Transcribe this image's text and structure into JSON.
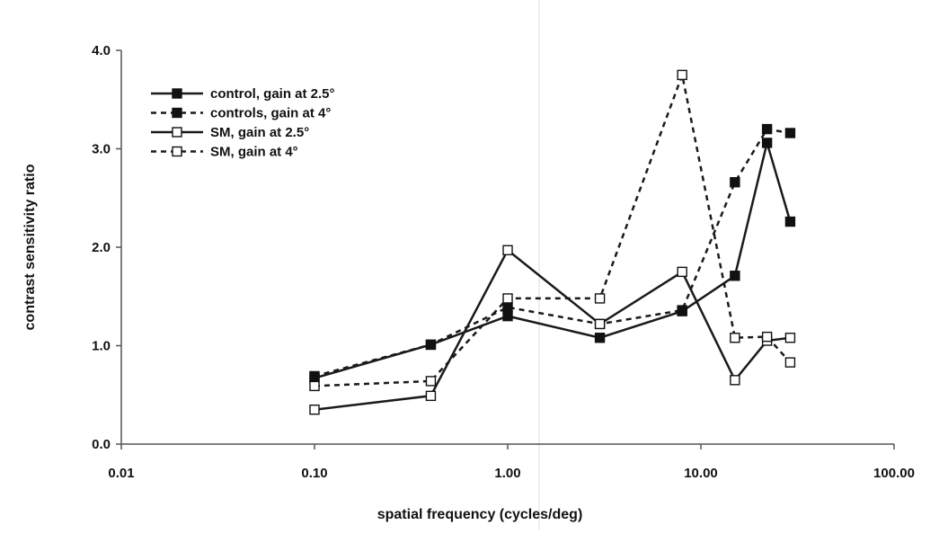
{
  "chart_data": {
    "type": "line",
    "title": "",
    "xlabel": "spatial frequency (cycles/deg)",
    "ylabel": "contrast sensitivity ratio",
    "x_scale": "log",
    "xlim": [
      0.01,
      100
    ],
    "ylim": [
      0,
      4
    ],
    "x_tick_labels": [
      "0.01",
      "0.10",
      "1.00",
      "10.00",
      "100.00"
    ],
    "y_tick_labels": [
      "0.0",
      "1.0",
      "2.0",
      "3.0",
      "4.0"
    ],
    "grid": false,
    "legend_position": "top-left",
    "series": [
      {
        "name": "control, gain at 2.5°",
        "line_style": "solid",
        "marker": "filled-square",
        "x": [
          0.1,
          0.4,
          1.0,
          3.0,
          8.0,
          15.0,
          22.0,
          29.0
        ],
        "y": [
          0.67,
          1.01,
          1.3,
          1.08,
          1.35,
          1.71,
          3.06,
          2.26
        ]
      },
      {
        "name": "controls, gain at 4°",
        "line_style": "dashed",
        "marker": "filled-square",
        "x": [
          0.1,
          0.4,
          1.0,
          3.0,
          8.0,
          15.0,
          22.0,
          29.0
        ],
        "y": [
          0.69,
          1.01,
          1.39,
          1.22,
          1.36,
          2.66,
          3.2,
          3.16
        ]
      },
      {
        "name": "SM, gain at 2.5°",
        "line_style": "solid",
        "marker": "open-square",
        "x": [
          0.1,
          0.4,
          1.0,
          3.0,
          8.0,
          15.0,
          22.0,
          29.0
        ],
        "y": [
          0.35,
          0.49,
          1.97,
          1.22,
          1.75,
          0.65,
          1.05,
          1.08
        ]
      },
      {
        "name": "SM, gain at 4°",
        "line_style": "dashed",
        "marker": "open-square",
        "x": [
          0.1,
          0.4,
          1.0,
          3.0,
          8.0,
          15.0,
          22.0,
          29.0
        ],
        "y": [
          0.59,
          0.64,
          1.48,
          1.48,
          3.75,
          1.08,
          1.09,
          0.83
        ]
      }
    ]
  }
}
